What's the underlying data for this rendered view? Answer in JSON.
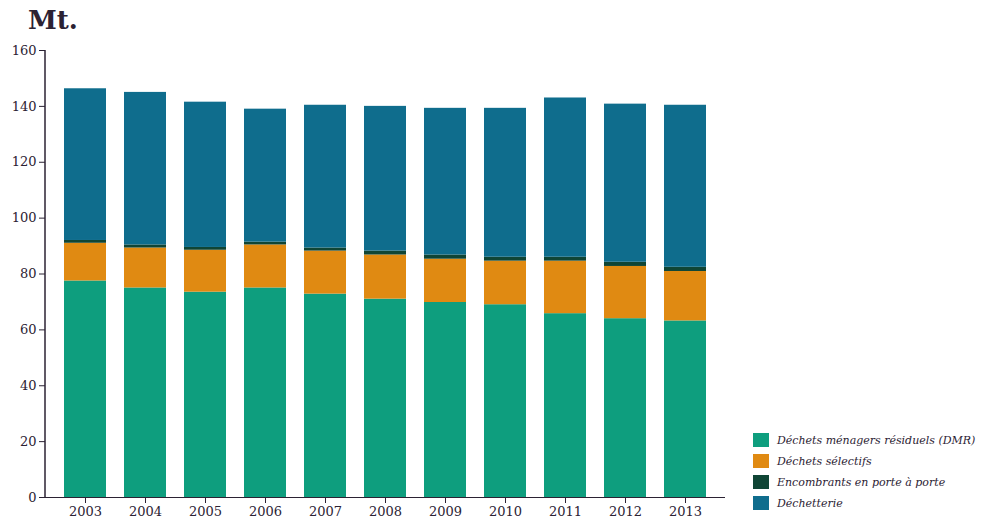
{
  "chart_data": {
    "type": "bar",
    "stacked": true,
    "ylabel": "Mt.",
    "categories": [
      "2003",
      "2004",
      "2005",
      "2006",
      "2007",
      "2008",
      "2009",
      "2010",
      "2011",
      "2012",
      "2013"
    ],
    "series": [
      {
        "name": "Déchets ménagers résiduels (DMR)",
        "color": "#0e9e7e",
        "values": [
          77.5,
          75,
          73.5,
          75,
          72.8,
          71,
          69.8,
          69,
          65.8,
          64,
          63.2
        ]
      },
      {
        "name": "Déchets sélectifs",
        "color": "#e08a12",
        "values": [
          13.5,
          14.3,
          15,
          15.4,
          15.4,
          15.8,
          15.5,
          15.6,
          18.8,
          18.7,
          17.7
        ]
      },
      {
        "name": "Encombrants en porte à porte",
        "color": "#0f4535",
        "values": [
          1,
          1.1,
          1,
          1,
          1.1,
          1.4,
          1.5,
          1.4,
          1.4,
          1.5,
          1.5
        ]
      },
      {
        "name": "Déchetterie",
        "color": "#0f6d8d",
        "values": [
          54.3,
          54.6,
          52,
          47.6,
          51.1,
          51.8,
          52.5,
          53.3,
          57,
          56.6,
          58
        ]
      }
    ],
    "ylim": [
      0,
      160
    ],
    "yticks": [
      0,
      20,
      40,
      60,
      80,
      100,
      120,
      140,
      160
    ],
    "grid": false,
    "legend": "bottom-right"
  }
}
